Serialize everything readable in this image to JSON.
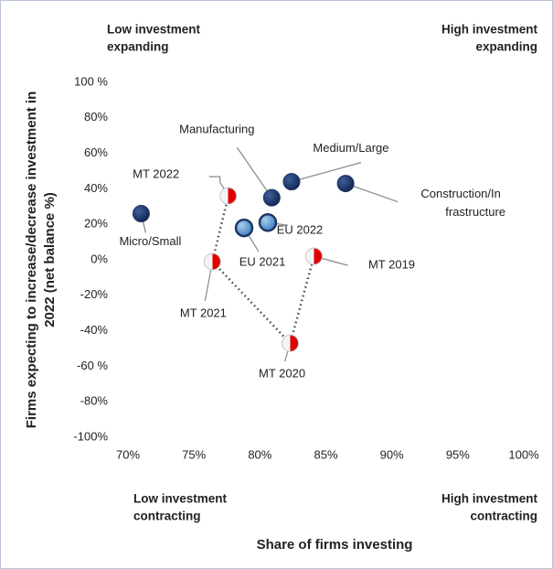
{
  "chart_data": {
    "type": "scatter",
    "x_label": "Share of firms investing",
    "y_label": [
      "Firms expecting to increase/decrease investment in",
      "2022  (net balance %)"
    ],
    "quadrant_labels": {
      "top_left": [
        "Low investment",
        "expanding"
      ],
      "top_right": [
        "High investment",
        "expanding"
      ],
      "bottom_left": [
        "Low investment",
        "contracting"
      ],
      "bottom_right": [
        "High investment",
        "contracting"
      ]
    },
    "xlim": [
      70,
      100
    ],
    "xticks": [
      {
        "value": 70,
        "label": "70%"
      },
      {
        "value": 75,
        "label": "75%"
      },
      {
        "value": 80,
        "label": "80%"
      },
      {
        "value": 85,
        "label": "85%"
      },
      {
        "value": 90,
        "label": "90%"
      },
      {
        "value": 95,
        "label": "95%"
      },
      {
        "value": 100,
        "label": "100%"
      }
    ],
    "ylim": [
      -100,
      100
    ],
    "yticks": [
      {
        "value": 100,
        "label": "100 %"
      },
      {
        "value": 80,
        "label": "80%"
      },
      {
        "value": 60,
        "label": "60%"
      },
      {
        "value": 40,
        "label": "40%"
      },
      {
        "value": 20,
        "label": "20%"
      },
      {
        "value": 0,
        "label": "0%"
      },
      {
        "value": -20,
        "label": "-20%"
      },
      {
        "value": -40,
        "label": "-40%"
      },
      {
        "value": -60,
        "label": "-60 %"
      },
      {
        "value": -80,
        "label": "-80%"
      },
      {
        "value": -100,
        "label": "-100%"
      }
    ],
    "series": [
      {
        "color": "#1f3864",
        "style": "solid",
        "labels": [
          [
            "Micro/Small"
          ],
          [
            "Manufacturing"
          ],
          [
            "Medium/Large"
          ],
          [
            "Construction/In",
            "frastructure"
          ]
        ],
        "x": [
          71.0,
          80.9,
          82.4,
          86.5
        ],
        "values": [
          26,
          35,
          44,
          43
        ]
      },
      {
        "color": "#5b9bd5",
        "style": "ringed",
        "labels": [
          [
            "EU 2021"
          ],
          [
            "EU 2022"
          ]
        ],
        "x": [
          78.8,
          80.6
        ],
        "values": [
          18,
          21
        ]
      },
      {
        "color": "#e00000",
        "style": "half",
        "line": "dotted",
        "labels": [
          [
            "MT 2022"
          ],
          [
            "MT 2021"
          ],
          [
            "MT 2020"
          ],
          [
            "MT 2019"
          ]
        ],
        "x": [
          77.6,
          76.4,
          82.3,
          84.1
        ],
        "values": [
          36,
          -1,
          -47,
          2
        ]
      }
    ]
  }
}
